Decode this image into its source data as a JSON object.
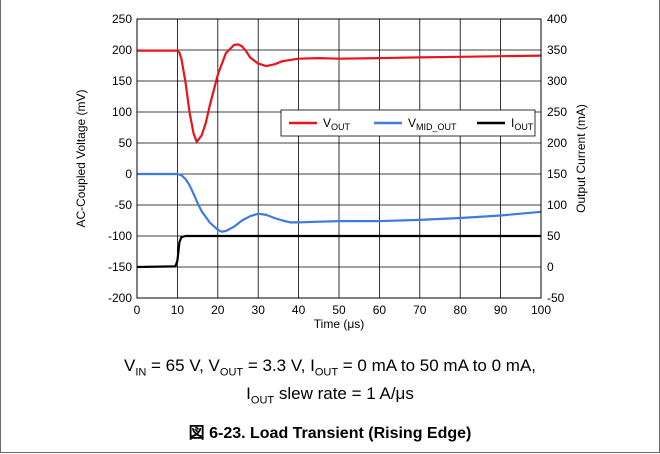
{
  "chart_data": {
    "type": "line",
    "xlabel": "Time (μs)",
    "ylabel_left": "AC-Coupled Voltage (mV)",
    "ylabel_right": "Output Current (mA)",
    "xlim": [
      0,
      100
    ],
    "ylim_left": [
      -200,
      250
    ],
    "ylim_right": [
      -50,
      400
    ],
    "x_ticks": [
      0,
      10,
      20,
      30,
      40,
      50,
      60,
      70,
      80,
      90,
      100
    ],
    "y_ticks_left": [
      250,
      200,
      150,
      100,
      50,
      0,
      -50,
      -100,
      -150,
      -200
    ],
    "y_ticks_right": [
      400,
      350,
      300,
      250,
      200,
      150,
      100,
      50,
      0,
      -50
    ],
    "grid": true,
    "legend_position": "right",
    "series": [
      {
        "name": "VOUT",
        "name_main": "V",
        "name_sub": "OUT",
        "color": "#e8141c",
        "axis": "left",
        "x": [
          0,
          10,
          10.5,
          11,
          12,
          13,
          14,
          14.8,
          16,
          17,
          18,
          20,
          22,
          24,
          25,
          26,
          27,
          28,
          30,
          32,
          34,
          36,
          40,
          45,
          50,
          60,
          70,
          80,
          90,
          100
        ],
        "y": [
          199,
          199,
          196,
          186,
          148,
          100,
          65,
          52,
          62,
          82,
          110,
          160,
          195,
          208,
          209,
          206,
          198,
          188,
          178,
          174,
          177,
          182,
          186,
          187,
          186,
          187,
          188,
          189,
          190,
          191
        ]
      },
      {
        "name": "VMID_OUT",
        "name_main": "V",
        "name_sub": "MID_OUT",
        "color": "#3d7be0",
        "axis": "left",
        "x": [
          0,
          10,
          11,
          12,
          13,
          14,
          15,
          16,
          18,
          20,
          21,
          22,
          24,
          26,
          28,
          30,
          32,
          34,
          36,
          38,
          40,
          45,
          50,
          60,
          70,
          80,
          90,
          100
        ],
        "y": [
          0,
          0,
          -2,
          -8,
          -18,
          -32,
          -47,
          -60,
          -78,
          -90,
          -93,
          -92,
          -85,
          -75,
          -68,
          -64,
          -66,
          -71,
          -75,
          -78,
          -78,
          -77,
          -76,
          -76,
          -74,
          -71,
          -67,
          -61
        ]
      },
      {
        "name": "IOUT",
        "name_main": "I",
        "name_sub": "OUT",
        "color": "#000000",
        "axis": "right",
        "x": [
          0,
          9.5,
          10,
          10.5,
          11,
          12,
          20,
          30,
          40,
          50,
          60,
          70,
          80,
          90,
          100
        ],
        "y": [
          0,
          1,
          10,
          40,
          48,
          50,
          50,
          50,
          50,
          50,
          50,
          50,
          50,
          50,
          50
        ]
      }
    ]
  },
  "conditions": {
    "line1": [
      {
        "t": "V"
      },
      {
        "s": "IN"
      },
      {
        "t": " = 65 V, V"
      },
      {
        "s": "OUT"
      },
      {
        "t": " = 3.3 V, I"
      },
      {
        "s": "OUT"
      },
      {
        "t": " = 0 mA to 50 mA to 0 mA,"
      }
    ],
    "line2": [
      {
        "t": "I"
      },
      {
        "s": "OUT"
      },
      {
        "t": " slew rate = 1 A/μs"
      }
    ]
  },
  "caption": "図 6-23. Load Transient (Rising Edge)"
}
